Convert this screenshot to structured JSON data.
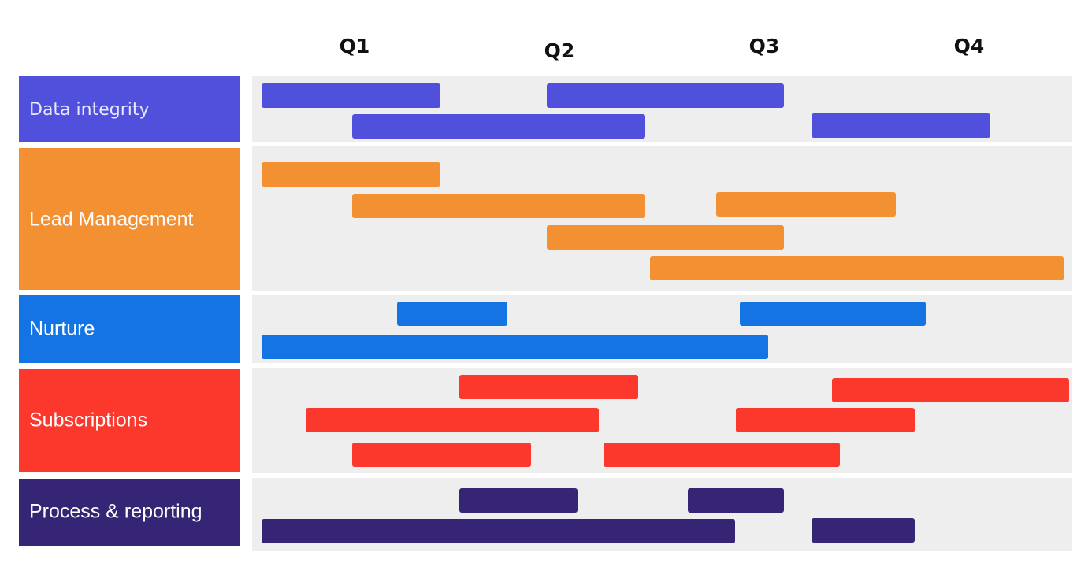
{
  "quarters": [
    "Q1",
    "Q2",
    "Q3",
    "Q4"
  ],
  "rows": [
    {
      "label": "Data integrity"
    },
    {
      "label": "Lead Management"
    },
    {
      "label": "Nurture"
    },
    {
      "label": "Subscriptions"
    },
    {
      "label": "Process & reporting"
    }
  ]
}
